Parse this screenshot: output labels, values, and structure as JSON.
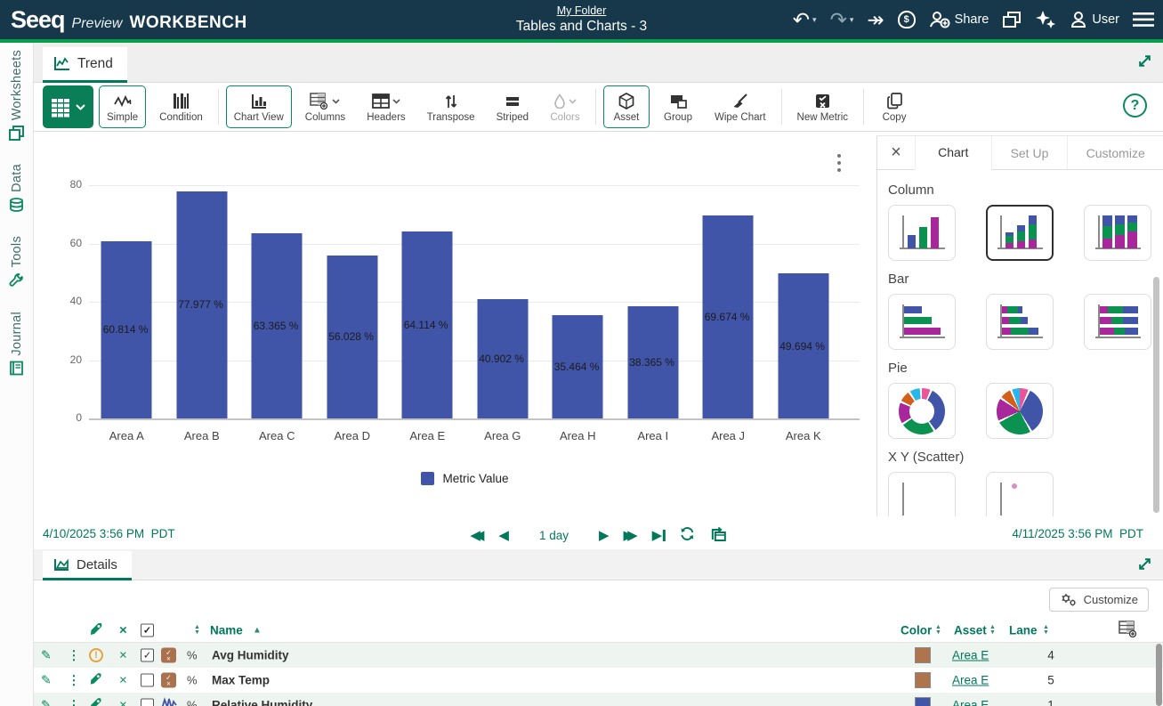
{
  "topbar": {
    "logo": "Seeq",
    "preview": "Preview",
    "workbench": "WORKBENCH",
    "folder": "My Folder",
    "title": "Tables and Charts - 3",
    "share_label": "Share",
    "user_label": "User"
  },
  "sidebar": {
    "items": [
      {
        "label": "Worksheets"
      },
      {
        "label": "Data"
      },
      {
        "label": "Tools"
      },
      {
        "label": "Journal"
      }
    ]
  },
  "trend": {
    "tab_label": "Trend"
  },
  "toolbar": {
    "simple": "Simple",
    "condition": "Condition",
    "chart_view": "Chart View",
    "columns": "Columns",
    "headers": "Headers",
    "transpose": "Transpose",
    "striped": "Striped",
    "colors": "Colors",
    "asset": "Asset",
    "group": "Group",
    "wipe_chart": "Wipe Chart",
    "new_metric": "New Metric",
    "copy": "Copy",
    "help": "?"
  },
  "chart_data": {
    "type": "bar",
    "categories": [
      "Area A",
      "Area B",
      "Area C",
      "Area D",
      "Area E",
      "Area G",
      "Area H",
      "Area I",
      "Area J",
      "Area K"
    ],
    "values": [
      60.814,
      77.977,
      63.365,
      56.028,
      64.114,
      40.902,
      35.464,
      38.365,
      69.674,
      49.694
    ],
    "value_labels": [
      "60.814 %",
      "77.977 %",
      "63.365 %",
      "56.028 %",
      "64.114 %",
      "40.902 %",
      "35.464 %",
      "38.365 %",
      "69.674 %",
      "49.694 %"
    ],
    "series_name": "Metric Value",
    "bar_color": "#4054a8",
    "ylim": [
      0,
      80
    ],
    "yticks": [
      0,
      20,
      40,
      60,
      80
    ],
    "grid": true,
    "legend_position": "bottom",
    "title": "",
    "xlabel": "",
    "ylabel": ""
  },
  "timebar": {
    "start": "4/10/2025 3:56 PM",
    "start_tz": "PDT",
    "duration": "1 day",
    "end": "4/11/2025 3:56 PM",
    "end_tz": "PDT"
  },
  "chart_panel": {
    "tabs": [
      "Chart",
      "Set Up",
      "Customize"
    ],
    "active_tab": "Chart",
    "sections": [
      {
        "label": "Column",
        "selected_index": 1
      },
      {
        "label": "Bar",
        "selected_index": -1
      },
      {
        "label": "Pie",
        "selected_index": -1
      },
      {
        "label": "X Y (Scatter)",
        "selected_index": -1
      }
    ]
  },
  "details": {
    "tab_label": "Details",
    "customize_label": "Customize",
    "columns": {
      "name": "Name",
      "color": "Color",
      "asset": "Asset",
      "lane": "Lane"
    },
    "rows": [
      {
        "status": "warning",
        "checked": true,
        "icon": "metric",
        "unit": "%",
        "name": "Avg Humidity",
        "swatch": "#ad744d",
        "asset": "Area E",
        "lane": "4",
        "striped": true
      },
      {
        "status": "rocket",
        "checked": false,
        "icon": "metric",
        "unit": "%",
        "name": "Max Temp",
        "swatch": "#ad744d",
        "asset": "Area E",
        "lane": "5",
        "striped": false
      },
      {
        "status": "rocket",
        "checked": false,
        "icon": "signal",
        "unit": "%",
        "name": "Relative Humidity",
        "swatch": "#4054a8",
        "asset": "Area E",
        "lane": "1",
        "striped": true
      }
    ]
  },
  "colors": {
    "accent_green": "#089e4e",
    "seeq_teal": "#00795b",
    "bar_blue": "#4054a8"
  }
}
